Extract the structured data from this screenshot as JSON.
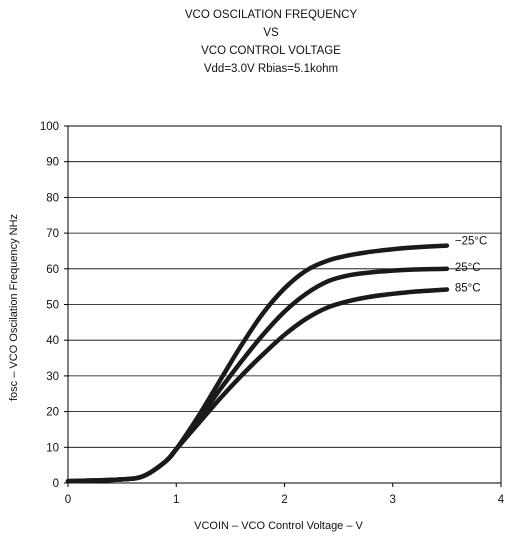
{
  "chart_data": {
    "type": "line",
    "title": [
      "VCO OSCILATION FREQUENCY",
      "VS",
      "VCO CONTROL VOLTAGE",
      "Vdd=3.0V Rbias=5.1kohm"
    ],
    "xlabel": "VCOIN – VCO Control Voltage – V",
    "ylabel": "fosc – VCO Oscilation Frequency NHz",
    "xlim": [
      0,
      4
    ],
    "ylim": [
      0,
      100
    ],
    "xticks": [
      "0",
      "1",
      "2",
      "3",
      "4"
    ],
    "yticks": [
      "0",
      "10",
      "20",
      "30",
      "40",
      "50",
      "60",
      "70",
      "80",
      "90",
      "100"
    ],
    "grid": "horizontal",
    "series": [
      {
        "name": "−25°C",
        "x": [
          0,
          0.5,
          0.7,
          0.9,
          1.0,
          1.2,
          1.4,
          1.6,
          1.8,
          2.0,
          2.2,
          2.4,
          2.6,
          2.8,
          3.0,
          3.2,
          3.5
        ],
        "y": [
          0.5,
          1.0,
          2.0,
          6.0,
          9.5,
          18.5,
          28.5,
          38.5,
          47.5,
          54.5,
          59.5,
          62.3,
          63.8,
          64.8,
          65.5,
          66.0,
          66.5
        ]
      },
      {
        "name": "25°C",
        "x": [
          0,
          0.5,
          0.7,
          0.9,
          1.0,
          1.2,
          1.4,
          1.6,
          1.8,
          2.0,
          2.2,
          2.4,
          2.6,
          2.8,
          3.0,
          3.2,
          3.5
        ],
        "y": [
          0.5,
          1.0,
          2.0,
          6.0,
          9.5,
          17.5,
          26.0,
          34.0,
          41.5,
          48.0,
          53.0,
          56.5,
          58.2,
          59.0,
          59.5,
          59.8,
          60.0
        ]
      },
      {
        "name": "85°C",
        "x": [
          0,
          0.5,
          0.7,
          0.9,
          1.0,
          1.2,
          1.4,
          1.6,
          1.8,
          2.0,
          2.2,
          2.4,
          2.6,
          2.8,
          3.0,
          3.2,
          3.5
        ],
        "y": [
          0.5,
          1.0,
          2.0,
          6.0,
          9.5,
          16.5,
          23.5,
          30.0,
          36.0,
          41.5,
          46.0,
          49.2,
          51.0,
          52.2,
          53.0,
          53.6,
          54.2
        ]
      }
    ],
    "colors": {
      "line": "#1a1a1a",
      "grid": "#000000",
      "text": "#111111"
    }
  }
}
